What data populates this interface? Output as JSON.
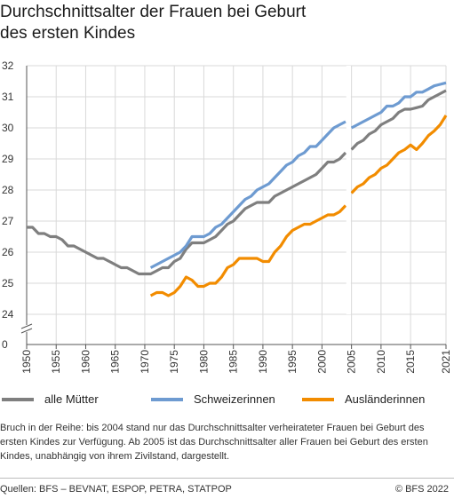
{
  "title_line1": "Durchschnittsalter der Frauen bei Geburt",
  "title_line2": "des ersten Kindes",
  "note": "Bruch in der Reihe: bis 2004 stand nur das Durchschnittsalter verheirateter Frauen bei Geburt des ersten Kindes zur Verfügung. Ab 2005 ist das Durchschnittsalter aller Frauen bei Geburt des ersten Kindes, unabhängig von ihrem Zivilstand, dargestellt.",
  "source": "Quellen: BFS –  BEVNAT, ESPOP, PETRA, STATPOP",
  "copyright": "© BFS 2022",
  "colors": {
    "alle_muetter": "#7f7f7f",
    "schweizerinnen": "#6e9bd1",
    "auslaenderinnen": "#f28c00",
    "grid": "#d9d9d9",
    "axis": "#555555"
  },
  "chart_data": {
    "type": "line",
    "title": "Durchschnittsalter der Frauen bei Geburt des ersten Kindes",
    "xlabel": "",
    "ylabel": "",
    "xlim": [
      1950,
      2021
    ],
    "ylim": [
      24,
      32
    ],
    "y_axis_break": true,
    "y_ticks": [
      0,
      24,
      25,
      26,
      27,
      28,
      29,
      30,
      31,
      32
    ],
    "x_ticks": [
      1950,
      1955,
      1960,
      1965,
      1970,
      1975,
      1980,
      1985,
      1990,
      1995,
      2000,
      2005,
      2010,
      2015,
      2021
    ],
    "series_break_after": 2004,
    "grid": true,
    "legend_position": "bottom",
    "series": [
      {
        "name": "alle Mütter",
        "color": "#7f7f7f",
        "points": [
          [
            1950,
            26.8
          ],
          [
            1951,
            26.8
          ],
          [
            1952,
            26.6
          ],
          [
            1953,
            26.6
          ],
          [
            1954,
            26.5
          ],
          [
            1955,
            26.5
          ],
          [
            1956,
            26.4
          ],
          [
            1957,
            26.2
          ],
          [
            1958,
            26.2
          ],
          [
            1959,
            26.1
          ],
          [
            1960,
            26.0
          ],
          [
            1961,
            25.9
          ],
          [
            1962,
            25.8
          ],
          [
            1963,
            25.8
          ],
          [
            1964,
            25.7
          ],
          [
            1965,
            25.6
          ],
          [
            1966,
            25.5
          ],
          [
            1967,
            25.5
          ],
          [
            1968,
            25.4
          ],
          [
            1969,
            25.3
          ],
          [
            1970,
            25.3
          ],
          [
            1971,
            25.3
          ],
          [
            1972,
            25.4
          ],
          [
            1973,
            25.5
          ],
          [
            1974,
            25.5
          ],
          [
            1975,
            25.7
          ],
          [
            1976,
            25.8
          ],
          [
            1977,
            26.1
          ],
          [
            1978,
            26.3
          ],
          [
            1979,
            26.3
          ],
          [
            1980,
            26.3
          ],
          [
            1981,
            26.4
          ],
          [
            1982,
            26.5
          ],
          [
            1983,
            26.7
          ],
          [
            1984,
            26.9
          ],
          [
            1985,
            27.0
          ],
          [
            1986,
            27.2
          ],
          [
            1987,
            27.4
          ],
          [
            1988,
            27.5
          ],
          [
            1989,
            27.6
          ],
          [
            1990,
            27.6
          ],
          [
            1991,
            27.6
          ],
          [
            1992,
            27.8
          ],
          [
            1993,
            27.9
          ],
          [
            1994,
            28.0
          ],
          [
            1995,
            28.1
          ],
          [
            1996,
            28.2
          ],
          [
            1997,
            28.3
          ],
          [
            1998,
            28.4
          ],
          [
            1999,
            28.5
          ],
          [
            2000,
            28.7
          ],
          [
            2001,
            28.9
          ],
          [
            2002,
            28.9
          ],
          [
            2003,
            29.0
          ],
          [
            2004,
            29.2
          ],
          [
            2005,
            29.3
          ],
          [
            2006,
            29.5
          ],
          [
            2007,
            29.6
          ],
          [
            2008,
            29.8
          ],
          [
            2009,
            29.9
          ],
          [
            2010,
            30.1
          ],
          [
            2011,
            30.2
          ],
          [
            2012,
            30.3
          ],
          [
            2013,
            30.5
          ],
          [
            2014,
            30.6
          ],
          [
            2015,
            30.6
          ],
          [
            2016,
            30.65
          ],
          [
            2017,
            30.7
          ],
          [
            2018,
            30.9
          ],
          [
            2019,
            31.0
          ],
          [
            2020,
            31.1
          ],
          [
            2021,
            31.2
          ]
        ]
      },
      {
        "name": "Schweizerinnen",
        "color": "#6e9bd1",
        "points": [
          [
            1971,
            25.5
          ],
          [
            1972,
            25.6
          ],
          [
            1973,
            25.7
          ],
          [
            1974,
            25.8
          ],
          [
            1975,
            25.9
          ],
          [
            1976,
            26.0
          ],
          [
            1977,
            26.2
          ],
          [
            1978,
            26.5
          ],
          [
            1979,
            26.5
          ],
          [
            1980,
            26.5
          ],
          [
            1981,
            26.6
          ],
          [
            1982,
            26.8
          ],
          [
            1983,
            26.9
          ],
          [
            1984,
            27.1
          ],
          [
            1985,
            27.3
          ],
          [
            1986,
            27.5
          ],
          [
            1987,
            27.7
          ],
          [
            1988,
            27.8
          ],
          [
            1989,
            28.0
          ],
          [
            1990,
            28.1
          ],
          [
            1991,
            28.2
          ],
          [
            1992,
            28.4
          ],
          [
            1993,
            28.6
          ],
          [
            1994,
            28.8
          ],
          [
            1995,
            28.9
          ],
          [
            1996,
            29.1
          ],
          [
            1997,
            29.2
          ],
          [
            1998,
            29.4
          ],
          [
            1999,
            29.4
          ],
          [
            2000,
            29.6
          ],
          [
            2001,
            29.8
          ],
          [
            2002,
            30.0
          ],
          [
            2003,
            30.1
          ],
          [
            2004,
            30.2
          ],
          [
            2005,
            30.0
          ],
          [
            2006,
            30.1
          ],
          [
            2007,
            30.2
          ],
          [
            2008,
            30.3
          ],
          [
            2009,
            30.4
          ],
          [
            2010,
            30.5
          ],
          [
            2011,
            30.7
          ],
          [
            2012,
            30.7
          ],
          [
            2013,
            30.8
          ],
          [
            2014,
            31.0
          ],
          [
            2015,
            31.0
          ],
          [
            2016,
            31.15
          ],
          [
            2017,
            31.15
          ],
          [
            2018,
            31.25
          ],
          [
            2019,
            31.35
          ],
          [
            2020,
            31.4
          ],
          [
            2021,
            31.45
          ]
        ]
      },
      {
        "name": "Ausländerinnen",
        "color": "#f28c00",
        "points": [
          [
            1971,
            24.6
          ],
          [
            1972,
            24.7
          ],
          [
            1973,
            24.7
          ],
          [
            1974,
            24.6
          ],
          [
            1975,
            24.7
          ],
          [
            1976,
            24.9
          ],
          [
            1977,
            25.2
          ],
          [
            1978,
            25.1
          ],
          [
            1979,
            24.9
          ],
          [
            1980,
            24.9
          ],
          [
            1981,
            25.0
          ],
          [
            1982,
            25.0
          ],
          [
            1983,
            25.2
          ],
          [
            1984,
            25.5
          ],
          [
            1985,
            25.6
          ],
          [
            1986,
            25.8
          ],
          [
            1987,
            25.8
          ],
          [
            1988,
            25.8
          ],
          [
            1989,
            25.8
          ],
          [
            1990,
            25.7
          ],
          [
            1991,
            25.7
          ],
          [
            1992,
            26.0
          ],
          [
            1993,
            26.2
          ],
          [
            1994,
            26.5
          ],
          [
            1995,
            26.7
          ],
          [
            1996,
            26.8
          ],
          [
            1997,
            26.9
          ],
          [
            1998,
            26.9
          ],
          [
            1999,
            27.0
          ],
          [
            2000,
            27.1
          ],
          [
            2001,
            27.2
          ],
          [
            2002,
            27.2
          ],
          [
            2003,
            27.3
          ],
          [
            2004,
            27.5
          ],
          [
            2005,
            27.9
          ],
          [
            2006,
            28.1
          ],
          [
            2007,
            28.2
          ],
          [
            2008,
            28.4
          ],
          [
            2009,
            28.5
          ],
          [
            2010,
            28.7
          ],
          [
            2011,
            28.8
          ],
          [
            2012,
            29.0
          ],
          [
            2013,
            29.2
          ],
          [
            2014,
            29.3
          ],
          [
            2015,
            29.45
          ],
          [
            2016,
            29.3
          ],
          [
            2017,
            29.5
          ],
          [
            2018,
            29.75
          ],
          [
            2019,
            29.9
          ],
          [
            2020,
            30.1
          ],
          [
            2021,
            30.4
          ]
        ]
      }
    ]
  }
}
